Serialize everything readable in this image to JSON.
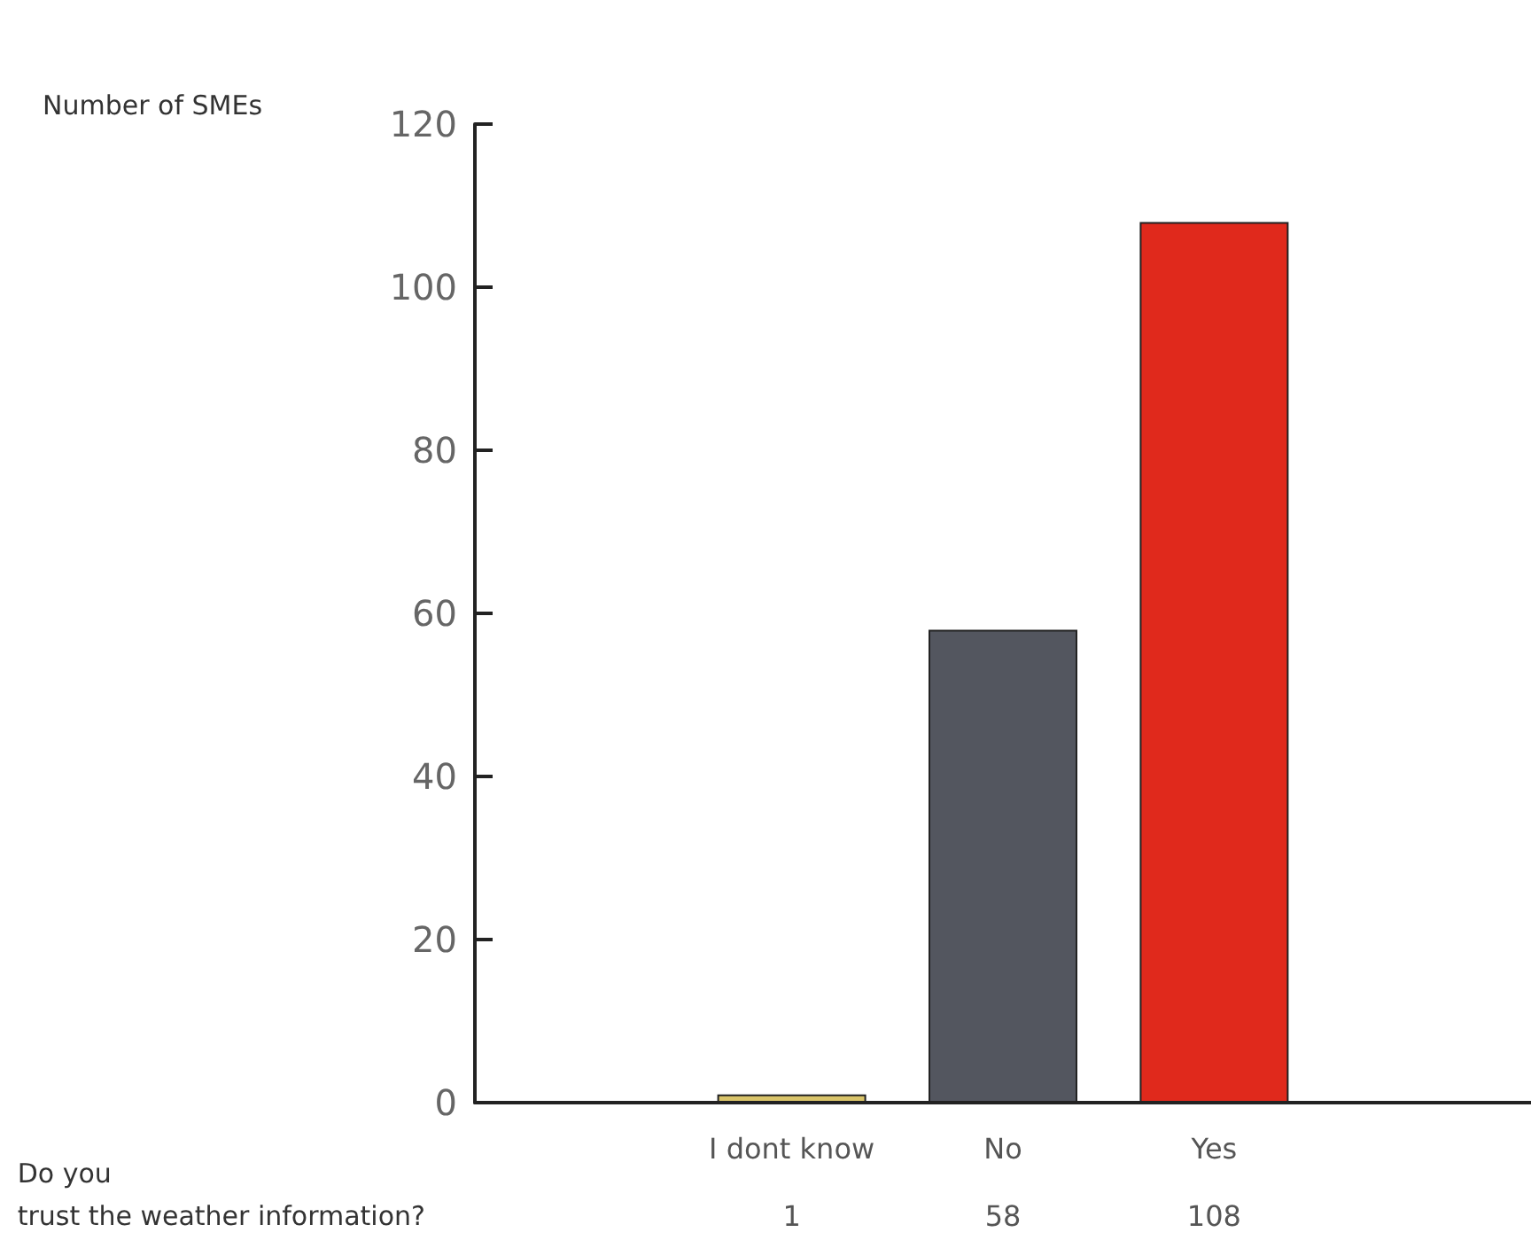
{
  "chart_data": {
    "type": "bar",
    "ylabel": "Number of SMEs",
    "xlabel": "Do you trust the weather information?",
    "categories": [
      null,
      "I dont know",
      "No",
      "Yes",
      null
    ],
    "values": [
      null,
      1,
      58,
      108,
      null
    ],
    "colors": [
      "#d9c46a",
      "#d9c46a",
      "#53565f",
      "#e0291c",
      "#e0291c"
    ],
    "ylim": [
      0,
      120
    ],
    "yticks": [
      0,
      20,
      40,
      60,
      80,
      100,
      120
    ],
    "grid": false,
    "data_labels": true
  }
}
